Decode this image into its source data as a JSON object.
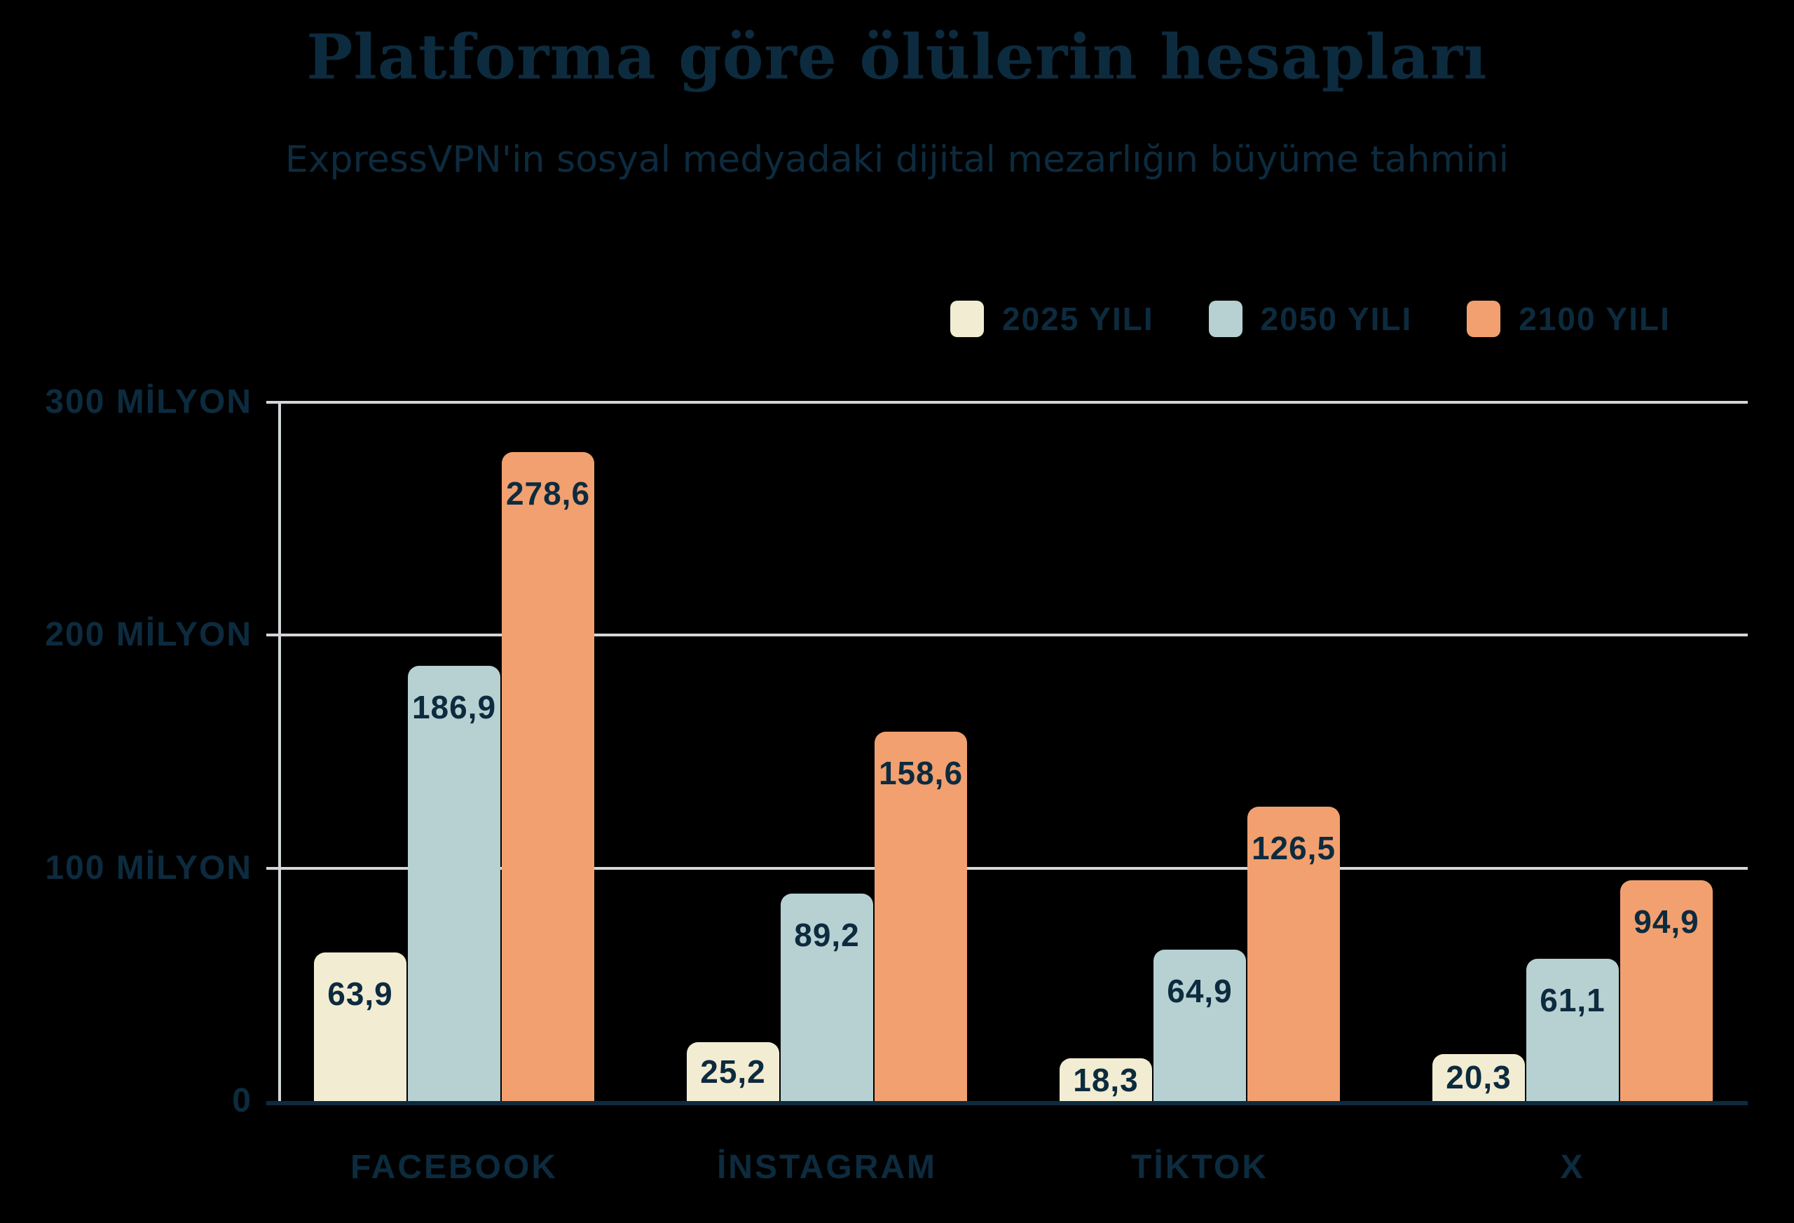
{
  "title": "Platforma göre ölülerin hesapları",
  "subtitle": "ExpressVPN'in sosyal medyadaki dijital mezarlığın büyüme tahmini",
  "colors": {
    "background": "#000000",
    "text": "#0d2b3e",
    "grid": "#d3d7d9",
    "axis": "#d3d7d9",
    "baseline": "#0d2b3e",
    "series_2025": "#f2ecd2",
    "series_2050": "#b7d0d2",
    "series_2100": "#f2a06f"
  },
  "legend": [
    {
      "label": "2025 YILI",
      "color": "#f2ecd2"
    },
    {
      "label": "2050 YILI",
      "color": "#b7d0d2"
    },
    {
      "label": "2100 YILI",
      "color": "#f2a06f"
    }
  ],
  "chart_data": {
    "type": "bar",
    "categories": [
      "FACEBOOK",
      "İNSTAGRAM",
      "TİKTOK",
      "X"
    ],
    "series": [
      {
        "name": "2025 YILI",
        "color": "#f2ecd2",
        "values": [
          63.9,
          25.2,
          18.3,
          20.3
        ],
        "display": [
          "63,9",
          "25,2",
          "18,3",
          "20,3"
        ]
      },
      {
        "name": "2050 YILI",
        "color": "#b7d0d2",
        "values": [
          186.9,
          89.2,
          64.9,
          61.1
        ],
        "display": [
          "186,9",
          "89,2",
          "64,9",
          "61,1"
        ]
      },
      {
        "name": "2100 YILI",
        "color": "#f2a06f",
        "values": [
          278.6,
          158.6,
          126.5,
          94.9
        ],
        "display": [
          "278,6",
          "158,6",
          "126,5",
          "94,9"
        ]
      }
    ],
    "unit": "milyon",
    "ylim": [
      0,
      300
    ],
    "yticks": [
      {
        "label": "300 MİLYON",
        "value": 300
      },
      {
        "label": "200 MİLYON",
        "value": 200
      },
      {
        "label": "100 MİLYON",
        "value": 100
      },
      {
        "label": "0",
        "value": 0
      }
    ],
    "grid": true,
    "legend_position": "top-right"
  }
}
